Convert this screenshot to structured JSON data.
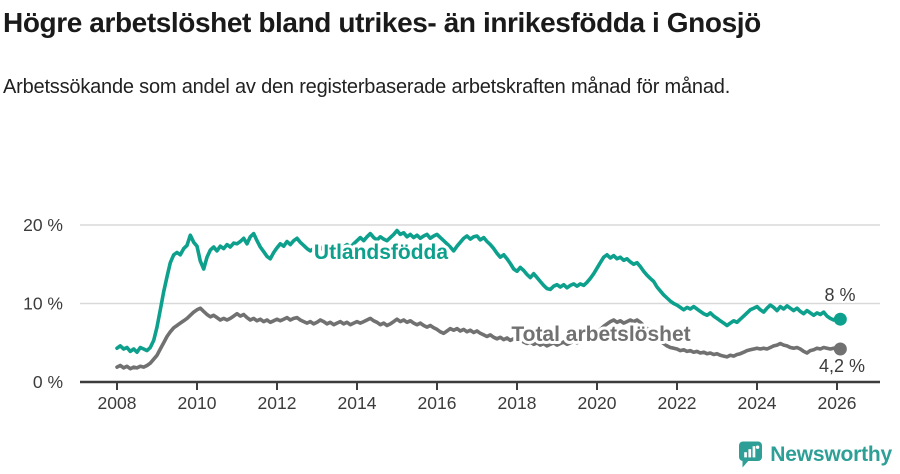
{
  "header": {
    "title": "Högre arbetslöshet bland utrikes- än inrikesfödda i Gnosjö",
    "subtitle": "Arbetssökande som andel av den registerbaserade arbetskraften månad för månad."
  },
  "footer": {
    "brand": "Newsworthy",
    "logo_icon": "bar-chart-speech-bubble-icon"
  },
  "colors": {
    "accent_teal": "#0da08d",
    "line_gray": "#717171",
    "grid": "#d9d9d9",
    "axis": "#3c3c3c",
    "logo": "#2d9f96"
  },
  "chart_data": {
    "type": "line",
    "title": "Högre arbetslöshet bland utrikes- än inrikesfödda i Gnosjö",
    "subtitle": "Arbetssökande som andel av den registerbaserade arbetskraften månad för månad.",
    "x_unit": "monthly values from 2008-01 to 2026-02",
    "x_ticks": [
      "2008",
      "2010",
      "2012",
      "2014",
      "2016",
      "2018",
      "2020",
      "2022",
      "2024",
      "2026"
    ],
    "y_ticks": [
      {
        "value": 0,
        "label": "0 %"
      },
      {
        "value": 10,
        "label": "10 %"
      },
      {
        "value": 20,
        "label": "20 %"
      }
    ],
    "ylim": [
      0,
      21.5
    ],
    "grid": "horizontal-only",
    "legend_position": "inline-labels",
    "series": [
      {
        "name": "Utlandsfödda",
        "color": "#0da08d",
        "end_label": "8 %",
        "end_value": 8.0,
        "values": [
          4.3,
          4.6,
          4.2,
          4.4,
          3.9,
          4.2,
          3.8,
          4.4,
          4.2,
          4.0,
          4.4,
          5.3,
          7.0,
          9.2,
          11.5,
          13.4,
          15.2,
          16.2,
          16.5,
          16.2,
          17.0,
          17.4,
          18.7,
          17.8,
          17.3,
          15.4,
          14.4,
          15.9,
          16.8,
          17.2,
          16.7,
          17.3,
          17.0,
          17.5,
          17.2,
          17.7,
          17.6,
          17.9,
          18.3,
          17.6,
          18.5,
          18.9,
          18.0,
          17.2,
          16.6,
          16.0,
          15.7,
          16.5,
          17.1,
          17.6,
          17.3,
          17.9,
          17.5,
          18.0,
          18.3,
          17.8,
          17.4,
          17.0,
          16.7,
          17.0,
          17.4,
          16.9,
          17.3,
          16.6,
          15.9,
          15.6,
          16.4,
          16.9,
          17.2,
          17.5,
          17.1,
          17.6,
          18.0,
          18.4,
          18.0,
          18.5,
          18.9,
          18.4,
          18.1,
          18.5,
          18.2,
          18.0,
          18.4,
          18.8,
          19.3,
          18.8,
          19.0,
          18.5,
          18.8,
          18.4,
          18.7,
          18.3,
          18.6,
          18.8,
          18.3,
          18.6,
          18.8,
          18.4,
          18.0,
          17.6,
          17.2,
          16.7,
          17.3,
          17.8,
          18.3,
          18.6,
          18.2,
          18.5,
          18.6,
          18.1,
          18.4,
          17.9,
          17.5,
          17.0,
          16.4,
          15.9,
          16.2,
          15.7,
          15.1,
          14.4,
          14.1,
          14.6,
          14.2,
          13.7,
          13.3,
          13.8,
          13.3,
          12.8,
          12.3,
          11.9,
          11.8,
          12.2,
          12.4,
          12.1,
          12.4,
          12.0,
          12.3,
          12.5,
          12.2,
          12.5,
          12.3,
          12.7,
          13.2,
          13.8,
          14.5,
          15.2,
          15.9,
          16.2,
          15.8,
          16.1,
          15.7,
          15.9,
          15.5,
          15.7,
          15.3,
          15.0,
          15.2,
          14.7,
          14.1,
          13.6,
          13.2,
          12.8,
          12.1,
          11.6,
          11.1,
          10.7,
          10.3,
          10.0,
          9.8,
          9.5,
          9.2,
          9.5,
          9.3,
          9.6,
          9.3,
          9.0,
          8.7,
          8.5,
          8.8,
          8.4,
          8.1,
          7.8,
          7.5,
          7.2,
          7.5,
          7.8,
          7.6,
          8.0,
          8.4,
          8.8,
          9.2,
          9.4,
          9.6,
          9.2,
          8.9,
          9.4,
          9.8,
          9.5,
          9.1,
          9.6,
          9.3,
          9.7,
          9.4,
          9.1,
          9.4,
          9.0,
          8.7,
          9.1,
          8.8,
          8.5,
          8.8,
          8.6,
          8.9,
          8.4,
          8.1,
          7.9,
          8.2,
          8.0
        ]
      },
      {
        "name": "Total arbetslöshet",
        "color": "#717171",
        "end_label": "4,2 %",
        "end_value": 4.2,
        "values": [
          1.9,
          2.1,
          1.8,
          2.0,
          1.7,
          1.9,
          1.8,
          2.0,
          1.9,
          2.1,
          2.4,
          2.9,
          3.4,
          4.2,
          5.0,
          5.8,
          6.4,
          6.9,
          7.2,
          7.5,
          7.8,
          8.1,
          8.5,
          8.9,
          9.2,
          9.4,
          9.0,
          8.6,
          8.3,
          8.5,
          8.2,
          7.9,
          8.1,
          7.9,
          8.1,
          8.4,
          8.7,
          8.4,
          8.6,
          8.2,
          7.9,
          8.1,
          7.8,
          8.0,
          7.7,
          7.9,
          7.6,
          7.8,
          8.0,
          7.8,
          8.0,
          8.2,
          7.9,
          8.1,
          8.2,
          7.9,
          7.7,
          7.5,
          7.7,
          7.4,
          7.6,
          7.9,
          7.7,
          7.4,
          7.6,
          7.3,
          7.5,
          7.7,
          7.4,
          7.6,
          7.3,
          7.5,
          7.7,
          7.5,
          7.7,
          7.9,
          8.1,
          7.8,
          7.6,
          7.3,
          7.5,
          7.2,
          7.4,
          7.7,
          8.0,
          7.7,
          7.9,
          7.6,
          7.8,
          7.5,
          7.3,
          7.5,
          7.2,
          7.0,
          7.2,
          6.9,
          6.7,
          6.4,
          6.2,
          6.5,
          6.8,
          6.6,
          6.8,
          6.5,
          6.7,
          6.4,
          6.6,
          6.3,
          6.5,
          6.2,
          6.0,
          5.8,
          6.0,
          5.7,
          5.5,
          5.7,
          5.4,
          5.6,
          5.3,
          5.5,
          5.2,
          5.4,
          5.1,
          4.9,
          5.1,
          4.8,
          5.0,
          4.7,
          4.9,
          4.6,
          4.8,
          5.0,
          4.7,
          4.9,
          5.1,
          4.8,
          5.0,
          5.2,
          5.0,
          5.2,
          5.4,
          5.6,
          5.8,
          6.1,
          6.4,
          6.7,
          7.1,
          7.4,
          7.7,
          7.9,
          7.6,
          7.8,
          7.5,
          7.7,
          7.9,
          7.7,
          7.9,
          7.6,
          7.2,
          6.8,
          6.4,
          6.0,
          5.6,
          5.2,
          4.9,
          4.6,
          4.4,
          4.3,
          4.2,
          4.0,
          4.1,
          3.9,
          4.0,
          3.8,
          3.9,
          3.7,
          3.8,
          3.6,
          3.7,
          3.5,
          3.6,
          3.4,
          3.3,
          3.2,
          3.4,
          3.3,
          3.5,
          3.6,
          3.8,
          4.0,
          4.1,
          4.2,
          4.3,
          4.2,
          4.3,
          4.2,
          4.4,
          4.6,
          4.7,
          4.9,
          4.7,
          4.6,
          4.4,
          4.3,
          4.4,
          4.2,
          3.9,
          3.7,
          4.0,
          4.1,
          4.3,
          4.2,
          4.4,
          4.3,
          4.2,
          4.3,
          4.3,
          4.2
        ]
      }
    ]
  }
}
